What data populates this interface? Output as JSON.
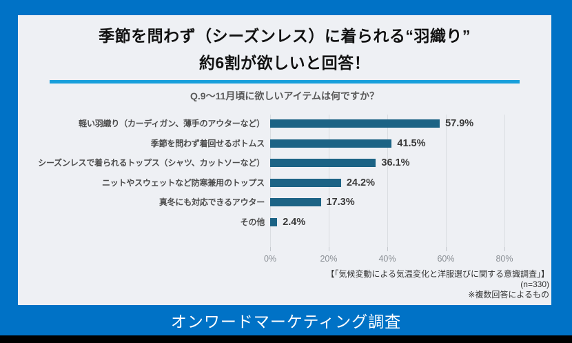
{
  "title": {
    "line1": "季節を問わず（シーズンレス）に着られる“羽織り”",
    "line2": "約6割が欲しいと回答！"
  },
  "question": "Q.9〜11月頃に欲しいアイテムは何ですか？",
  "chart_data": {
    "type": "bar",
    "orientation": "horizontal",
    "title": "Q.9〜11月頃に欲しいアイテムは何ですか？",
    "categories": [
      "軽い羽織り（カーディガン、薄手のアウターなど）",
      "季節を問わず着回せるボトムス",
      "シーズンレスで着られるトップス（シャツ、カットソーなど）",
      "ニットやスウェットなど防寒兼用のトップス",
      "真冬にも対応できるアウター",
      "その他"
    ],
    "values": [
      57.9,
      41.5,
      36.1,
      24.2,
      17.3,
      2.4
    ],
    "value_labels": [
      "57.9%",
      "41.5%",
      "36.1%",
      "24.2%",
      "17.3%",
      "2.4%"
    ],
    "xlabel": "",
    "ylabel": "",
    "xlim": [
      0,
      80
    ],
    "x_ticks": [
      "0%",
      "20%",
      "40%",
      "60%",
      "80%"
    ],
    "grid": true,
    "bar_color": "#1C6385"
  },
  "footnotes": {
    "line1": "【「気候変動による気温変化と洋服選びに関する意識調査」】",
    "line2": "(n=330)",
    "line3": "※複数回答によるもの"
  },
  "footer": {
    "label": "オンワードマーケティング調査"
  },
  "colors": {
    "background_blue": "#0072C6",
    "panel": "#EEF0F4",
    "accent_underline": "#189FDB",
    "bar": "#1C6385",
    "bottom_strip": "#000000"
  }
}
